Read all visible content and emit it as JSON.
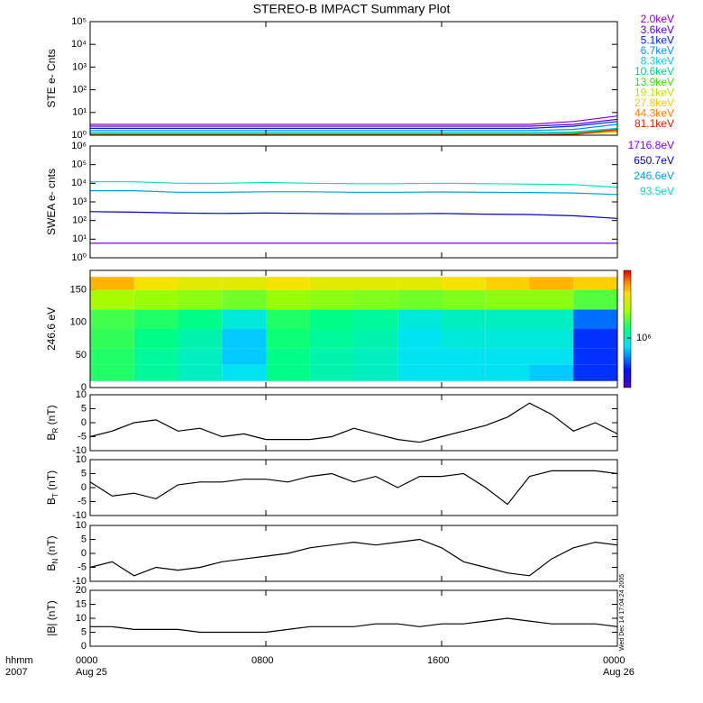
{
  "title": "STEREO-B IMPACT Summary Plot",
  "timestamp": "Wed Dec 14 17:04:24 2005",
  "x_axis": {
    "xlim": [
      0,
      24
    ],
    "xticks": [
      {
        "value": 0,
        "label": "0000"
      },
      {
        "value": 8,
        "label": "0800"
      },
      {
        "value": 16,
        "label": "1600"
      },
      {
        "value": 24,
        "label": "0000"
      }
    ],
    "dates": [
      {
        "value": 0,
        "label": "Aug 25"
      },
      {
        "value": 24,
        "label": "Aug 26"
      }
    ],
    "corner_labels": [
      "hhmm",
      "2007"
    ]
  },
  "chart_data": [
    {
      "type": "line",
      "ylabel": "STE e- Cnts",
      "log": true,
      "ylim": [
        1,
        100000
      ],
      "yticks": [
        {
          "value": 1,
          "label": "10⁰"
        },
        {
          "value": 10,
          "label": "10¹"
        },
        {
          "value": 100,
          "label": "10²"
        },
        {
          "value": 1000,
          "label": "10³"
        },
        {
          "value": 10000,
          "label": "10⁴"
        },
        {
          "value": 100000,
          "label": "10⁵"
        }
      ],
      "x": [
        0,
        2,
        4,
        6,
        8,
        10,
        12,
        14,
        16,
        18,
        20,
        22,
        24
      ],
      "series": [
        {
          "name": "2.0keV",
          "color": "#8a00d0",
          "values": [
            3,
            3,
            3,
            3,
            3,
            3,
            3,
            3,
            3,
            3,
            3,
            4,
            7
          ]
        },
        {
          "name": "3.6keV",
          "color": "#5a00e0",
          "values": [
            2.5,
            2.5,
            2.5,
            2.5,
            2.5,
            2.5,
            2.5,
            2.5,
            2.5,
            2.5,
            2.5,
            3,
            5
          ]
        },
        {
          "name": "5.1keV",
          "color": "#0020ff",
          "values": [
            2,
            2,
            2,
            2,
            2,
            2,
            2,
            2,
            2,
            2,
            2,
            2.5,
            4
          ]
        },
        {
          "name": "6.7keV",
          "color": "#0090ff",
          "values": [
            1.6,
            1.6,
            1.6,
            1.6,
            1.6,
            1.6,
            1.6,
            1.6,
            1.6,
            1.6,
            1.6,
            1.8,
            3
          ]
        },
        {
          "name": "8.3keV",
          "color": "#00d0e0",
          "values": [
            1.3,
            1.3,
            1.3,
            1.3,
            1.3,
            1.3,
            1.3,
            1.3,
            1.3,
            1.3,
            1.3,
            1.4,
            2
          ]
        },
        {
          "name": "10.6keV",
          "color": "#00d090",
          "values": [
            1.2,
            1.2,
            1.2,
            1.2,
            1.2,
            1.2,
            1.2,
            1.2,
            1.2,
            1.2,
            1.2,
            1.3,
            1.8
          ]
        },
        {
          "name": "13.9keV",
          "color": "#40e000",
          "values": [
            1.1,
            1.1,
            1.1,
            1.1,
            1.1,
            1.1,
            1.1,
            1.1,
            1.1,
            1.1,
            1.1,
            1.2,
            1.6
          ]
        },
        {
          "name": "19.1keV",
          "color": "#c0e000",
          "values": [
            1.05,
            1.05,
            1.05,
            1.05,
            1.05,
            1.05,
            1.05,
            1.05,
            1.05,
            1.05,
            1.05,
            1.1,
            1.5
          ]
        },
        {
          "name": "27.8keV",
          "color": "#ffc800",
          "values": [
            1.03,
            1.03,
            1.03,
            1.03,
            1.03,
            1.03,
            1.03,
            1.03,
            1.03,
            1.03,
            1.03,
            1.1,
            1.4
          ]
        },
        {
          "name": "44.3keV",
          "color": "#ff8000",
          "values": [
            1.02,
            1.02,
            1.02,
            1.02,
            1.02,
            1.02,
            1.02,
            1.02,
            1.02,
            1.02,
            1.02,
            1.1,
            1.6
          ]
        },
        {
          "name": "81.1keV",
          "color": "#e02000",
          "values": [
            1.01,
            1.01,
            1.01,
            1.01,
            1.01,
            1.01,
            1.01,
            1.01,
            1.01,
            1.01,
            1.01,
            1.1,
            1.8
          ]
        }
      ]
    },
    {
      "type": "line",
      "ylabel": "SWEA e- cnts",
      "log": true,
      "ylim": [
        1,
        1000000
      ],
      "yticks": [
        {
          "value": 1,
          "label": "10⁰"
        },
        {
          "value": 10,
          "label": "10¹"
        },
        {
          "value": 100,
          "label": "10²"
        },
        {
          "value": 1000,
          "label": "10³"
        },
        {
          "value": 10000,
          "label": "10⁴"
        },
        {
          "value": 100000,
          "label": "10⁵"
        },
        {
          "value": 1000000,
          "label": "10⁶"
        }
      ],
      "x": [
        0,
        2,
        4,
        6,
        8,
        10,
        12,
        14,
        16,
        18,
        20,
        22,
        24
      ],
      "series": [
        {
          "name": "1716.8eV",
          "color": "#8000ff",
          "values": [
            6,
            6,
            6,
            6,
            6,
            6,
            6,
            6,
            6,
            6,
            6,
            6,
            6
          ]
        },
        {
          "name": "650.7eV",
          "color": "#0000c0",
          "values": [
            300,
            280,
            250,
            240,
            250,
            240,
            230,
            230,
            240,
            220,
            210,
            180,
            130
          ]
        },
        {
          "name": "246.6eV",
          "color": "#00a0e0",
          "values": [
            4000,
            4000,
            3300,
            3300,
            3500,
            3500,
            3300,
            3300,
            3400,
            3300,
            3200,
            3000,
            2500
          ]
        },
        {
          "name": "93.5eV",
          "color": "#00e0c8",
          "values": [
            12000,
            12000,
            10000,
            10000,
            11000,
            10000,
            9500,
            9500,
            10000,
            9500,
            9000,
            8500,
            6000
          ]
        }
      ]
    },
    {
      "type": "heatmap",
      "ylabel": "246.6 eV",
      "ylim": [
        0,
        180
      ],
      "yticks": [
        0,
        50,
        100,
        150
      ],
      "zlim": [
        200000,
        9000000
      ],
      "zticks": [
        {
          "value": 1000000,
          "label": "10⁶"
        }
      ],
      "x_edges": [
        0,
        2,
        4,
        6,
        8,
        10,
        12,
        14,
        16,
        18,
        20,
        22,
        24
      ],
      "y_edges": [
        10,
        35,
        60,
        90,
        120,
        150,
        170
      ],
      "values": [
        [
          1500000,
          1200000,
          1000000,
          800000,
          1300000,
          1100000,
          1000000,
          800000,
          800000,
          800000,
          700000,
          400000
        ],
        [
          1500000,
          1200000,
          1000000,
          700000,
          1300000,
          1100000,
          1000000,
          800000,
          800000,
          800000,
          800000,
          400000
        ],
        [
          1600000,
          1300000,
          1100000,
          700000,
          1400000,
          1200000,
          1100000,
          800000,
          900000,
          900000,
          900000,
          400000
        ],
        [
          1700000,
          1500000,
          1300000,
          900000,
          1500000,
          1300000,
          1200000,
          900000,
          1000000,
          1000000,
          1000000,
          500000
        ],
        [
          2500000,
          2300000,
          2200000,
          2000000,
          2300000,
          2200000,
          2100000,
          2000000,
          2100000,
          2200000,
          2200000,
          1800000
        ],
        [
          5000000,
          4000000,
          3500000,
          3500000,
          4000000,
          3500000,
          3500000,
          3500000,
          4000000,
          4500000,
          5000000,
          4500000
        ]
      ]
    },
    {
      "type": "line",
      "ylabel": {
        "main": "B",
        "sub": "R",
        "unit": " (nT)"
      },
      "ylim": [
        -10,
        10
      ],
      "yticks": [
        -10,
        -5,
        0,
        5,
        10
      ],
      "x": [
        0,
        1,
        2,
        3,
        4,
        5,
        6,
        7,
        8,
        9,
        10,
        11,
        12,
        13,
        14,
        15,
        16,
        17,
        18,
        19,
        20,
        21,
        22,
        23,
        24
      ],
      "series": [
        {
          "color": "#000000",
          "values": [
            -5,
            -3,
            0,
            1,
            -3,
            -2,
            -5,
            -4,
            -6,
            -6,
            -6,
            -5,
            -2,
            -4,
            -6,
            -7,
            -5,
            -3,
            -1,
            2,
            7,
            3,
            -3,
            0,
            -4
          ]
        }
      ]
    },
    {
      "type": "line",
      "ylabel": {
        "main": "B",
        "sub": "T",
        "unit": " (nT)"
      },
      "ylim": [
        -10,
        10
      ],
      "yticks": [
        -10,
        -5,
        0,
        5,
        10
      ],
      "x": [
        0,
        1,
        2,
        3,
        4,
        5,
        6,
        7,
        8,
        9,
        10,
        11,
        12,
        13,
        14,
        15,
        16,
        17,
        18,
        19,
        20,
        21,
        22,
        23,
        24
      ],
      "series": [
        {
          "color": "#000000",
          "values": [
            2,
            -3,
            -2,
            -4,
            1,
            2,
            2,
            3,
            3,
            2,
            4,
            5,
            2,
            4,
            0,
            4,
            4,
            5,
            0,
            -6,
            4,
            6,
            6,
            6,
            5
          ]
        }
      ]
    },
    {
      "type": "line",
      "ylabel": {
        "main": "B",
        "sub": "N",
        "unit": " (nT)"
      },
      "ylim": [
        -10,
        10
      ],
      "yticks": [
        -10,
        -5,
        0,
        5,
        10
      ],
      "x": [
        0,
        1,
        2,
        3,
        4,
        5,
        6,
        7,
        8,
        9,
        10,
        11,
        12,
        13,
        14,
        15,
        16,
        17,
        18,
        19,
        20,
        21,
        22,
        23,
        24
      ],
      "series": [
        {
          "color": "#000000",
          "values": [
            -5,
            -3,
            -8,
            -5,
            -6,
            -5,
            -3,
            -2,
            -1,
            0,
            2,
            3,
            4,
            3,
            4,
            5,
            2,
            -3,
            -5,
            -7,
            -8,
            -2,
            2,
            4,
            3
          ]
        }
      ]
    },
    {
      "type": "line",
      "ylabel": "|B| (nT)",
      "ylim": [
        0,
        20
      ],
      "yticks": [
        0,
        5,
        10,
        15,
        20
      ],
      "x": [
        0,
        1,
        2,
        3,
        4,
        5,
        6,
        7,
        8,
        9,
        10,
        11,
        12,
        13,
        14,
        15,
        16,
        17,
        18,
        19,
        20,
        21,
        22,
        23,
        24
      ],
      "series": [
        {
          "color": "#000000",
          "values": [
            7,
            7,
            6,
            6,
            6,
            5,
            5,
            5,
            5,
            6,
            7,
            7,
            7,
            8,
            8,
            7,
            8,
            8,
            9,
            10,
            9,
            8,
            8,
            8,
            7
          ]
        }
      ]
    }
  ]
}
